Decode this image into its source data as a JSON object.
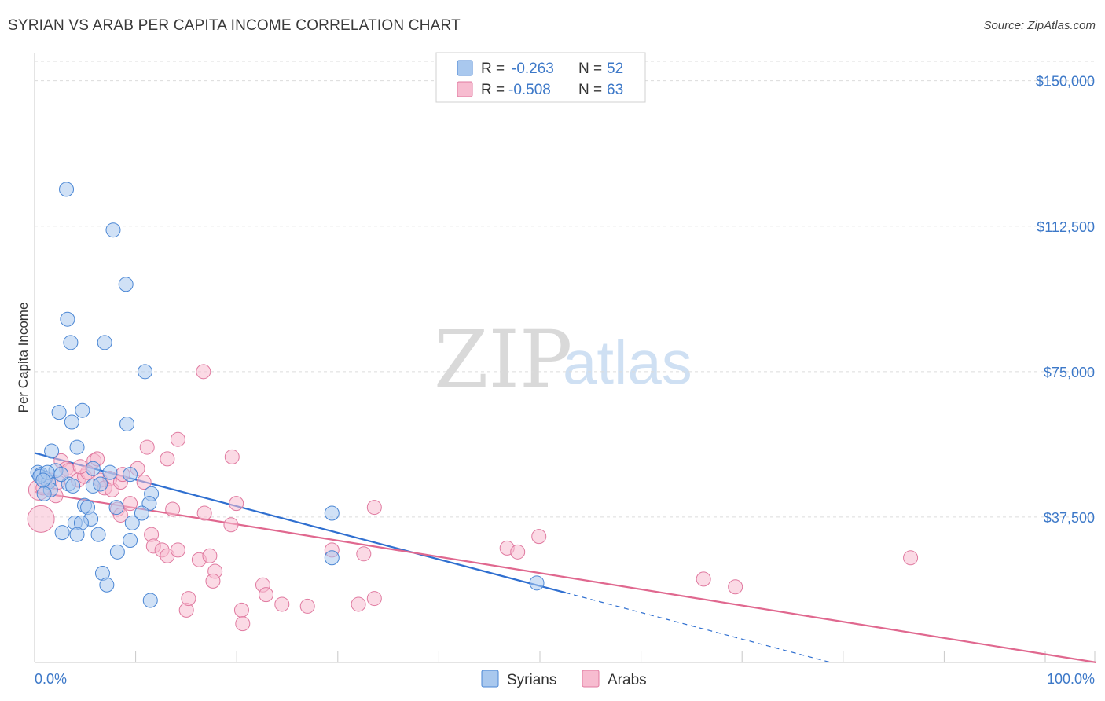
{
  "title": "SYRIAN VS ARAB PER CAPITA INCOME CORRELATION CHART",
  "source": "Source: ZipAtlas.com",
  "watermark": {
    "zip": "ZIP",
    "atlas": "atlas"
  },
  "legend": {
    "r_label": "R =",
    "n_label": "N =",
    "series": [
      {
        "name": "Syrians",
        "r": "-0.263",
        "n": "52"
      },
      {
        "name": "Arabs",
        "r": "-0.508",
        "n": "63"
      }
    ]
  },
  "colors": {
    "syrians_fill": "#a9c8ee",
    "syrians_stroke": "#4a86d4",
    "syrians_line": "#2f6fd0",
    "arabs_fill": "#f7bcd0",
    "arabs_stroke": "#e07aa0",
    "arabs_line": "#e0688f",
    "tick_text": "#3c78c8"
  },
  "chart_data": {
    "type": "scatter",
    "title": "SYRIAN VS ARAB PER CAPITA INCOME CORRELATION CHART",
    "xlabel": "",
    "ylabel": "Per Capita Income",
    "xlim": [
      0,
      100
    ],
    "ylim": [
      0,
      155000
    ],
    "x_tick_labels": [
      "0.0%",
      "100.0%"
    ],
    "y_ticks": [
      37500,
      75000,
      112500,
      150000
    ],
    "y_tick_labels": [
      "$37,500",
      "$75,000",
      "$112,500",
      "$150,000"
    ],
    "grid": true,
    "legend_position": "top-center",
    "series": [
      {
        "name": "Syrians",
        "trend": {
          "x0": 0,
          "y0": 54000,
          "x1": 50,
          "y1": 18000,
          "dashed_to_x": 75,
          "dashed_to_y": 0
        },
        "points": [
          [
            3.0,
            122000
          ],
          [
            7.4,
            111500
          ],
          [
            8.6,
            97500
          ],
          [
            3.1,
            88500
          ],
          [
            3.4,
            82500
          ],
          [
            6.6,
            82500
          ],
          [
            10.4,
            75000
          ],
          [
            2.3,
            64500
          ],
          [
            4.5,
            65000
          ],
          [
            3.5,
            62000
          ],
          [
            8.7,
            61500
          ],
          [
            4.0,
            55500
          ],
          [
            1.6,
            54500
          ],
          [
            0.3,
            49000
          ],
          [
            0.6,
            48500
          ],
          [
            1.0,
            47500
          ],
          [
            2.0,
            49500
          ],
          [
            5.5,
            50000
          ],
          [
            7.1,
            49000
          ],
          [
            9.0,
            48500
          ],
          [
            1.3,
            46500
          ],
          [
            3.2,
            46000
          ],
          [
            5.5,
            45500
          ],
          [
            6.2,
            46000
          ],
          [
            1.5,
            44500
          ],
          [
            0.9,
            43500
          ],
          [
            11.0,
            43500
          ],
          [
            4.7,
            40500
          ],
          [
            5.0,
            40000
          ],
          [
            7.7,
            40000
          ],
          [
            10.8,
            41000
          ],
          [
            10.1,
            38500
          ],
          [
            28.0,
            38500
          ],
          [
            5.3,
            37000
          ],
          [
            3.8,
            36000
          ],
          [
            4.4,
            36000
          ],
          [
            9.2,
            36000
          ],
          [
            2.6,
            33500
          ],
          [
            4.0,
            33000
          ],
          [
            6.0,
            33000
          ],
          [
            9.0,
            31500
          ],
          [
            7.8,
            28500
          ],
          [
            6.4,
            23000
          ],
          [
            6.8,
            20000
          ],
          [
            10.9,
            16000
          ],
          [
            28.0,
            27000
          ],
          [
            47.3,
            20500
          ],
          [
            0.5,
            48000
          ],
          [
            1.2,
            49000
          ],
          [
            2.5,
            48500
          ],
          [
            3.6,
            45500
          ],
          [
            0.8,
            47000
          ]
        ]
      },
      {
        "name": "Arabs",
        "trend": {
          "x0": 0,
          "y0": 44000,
          "x1": 100,
          "y1": 0
        },
        "points": [
          [
            0.4,
            44500
          ],
          [
            0.8,
            45000
          ],
          [
            0.6,
            37000
          ],
          [
            1.5,
            47000
          ],
          [
            2.2,
            46500
          ],
          [
            2.5,
            52000
          ],
          [
            3.0,
            50000
          ],
          [
            3.2,
            49500
          ],
          [
            4.1,
            47000
          ],
          [
            4.7,
            48000
          ],
          [
            5.6,
            52000
          ],
          [
            5.0,
            49000
          ],
          [
            6.2,
            47000
          ],
          [
            7.1,
            47500
          ],
          [
            6.6,
            45000
          ],
          [
            7.3,
            44500
          ],
          [
            8.1,
            46500
          ],
          [
            8.3,
            48500
          ],
          [
            9.7,
            50000
          ],
          [
            10.6,
            55500
          ],
          [
            10.3,
            46500
          ],
          [
            12.5,
            52500
          ],
          [
            13.5,
            57500
          ],
          [
            15.9,
            75000
          ],
          [
            18.6,
            53000
          ],
          [
            9.0,
            41000
          ],
          [
            7.8,
            39500
          ],
          [
            8.1,
            38000
          ],
          [
            13.0,
            39500
          ],
          [
            16.0,
            38500
          ],
          [
            19.0,
            41000
          ],
          [
            18.5,
            35500
          ],
          [
            11.0,
            33000
          ],
          [
            11.2,
            30000
          ],
          [
            12.0,
            29000
          ],
          [
            12.5,
            27500
          ],
          [
            13.5,
            29000
          ],
          [
            15.5,
            26500
          ],
          [
            16.5,
            27500
          ],
          [
            17.0,
            23500
          ],
          [
            16.8,
            21000
          ],
          [
            21.5,
            20000
          ],
          [
            21.8,
            17500
          ],
          [
            23.3,
            15000
          ],
          [
            25.7,
            14500
          ],
          [
            19.5,
            13500
          ],
          [
            14.3,
            13500
          ],
          [
            14.5,
            16500
          ],
          [
            19.6,
            10000
          ],
          [
            28.0,
            29000
          ],
          [
            31.0,
            28000
          ],
          [
            32.0,
            16500
          ],
          [
            30.5,
            15000
          ],
          [
            32.0,
            40000
          ],
          [
            44.5,
            29500
          ],
          [
            45.5,
            28500
          ],
          [
            47.5,
            32500
          ],
          [
            63.0,
            21500
          ],
          [
            66.0,
            19500
          ],
          [
            82.5,
            27000
          ],
          [
            2.0,
            43000
          ],
          [
            4.3,
            50500
          ],
          [
            5.9,
            52500
          ]
        ]
      }
    ]
  }
}
